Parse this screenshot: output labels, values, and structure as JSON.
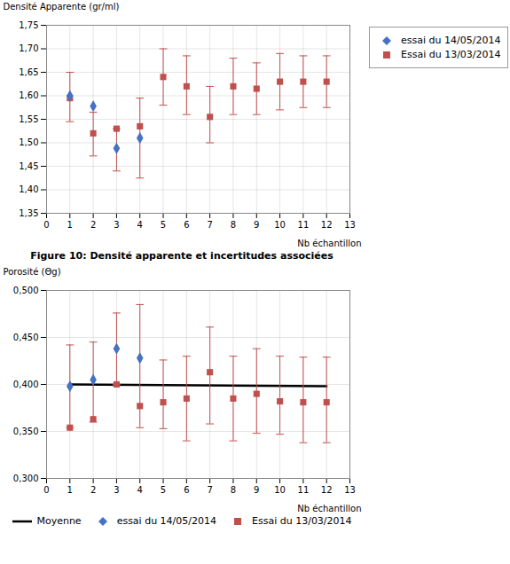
{
  "chart_data": [
    {
      "type": "scatter",
      "xlabel": "Nb échantillon",
      "ylabel": "Densité Apparente (gr/ml)",
      "caption": "Figure 10: Densité apparente et incertitudes associées",
      "xlim": [
        0,
        13
      ],
      "ylim": [
        1.35,
        1.75
      ],
      "xticks": [
        0,
        1,
        2,
        3,
        4,
        5,
        6,
        7,
        8,
        9,
        10,
        11,
        12,
        13
      ],
      "yticks": [
        {
          "value": 1.35,
          "label": "1,35"
        },
        {
          "value": 1.4,
          "label": "1,40"
        },
        {
          "value": 1.45,
          "label": "1,45"
        },
        {
          "value": 1.5,
          "label": "1,50"
        },
        {
          "value": 1.55,
          "label": "1,55"
        },
        {
          "value": 1.6,
          "label": "1,60"
        },
        {
          "value": 1.65,
          "label": "1,65"
        },
        {
          "value": 1.7,
          "label": "1,70"
        },
        {
          "value": 1.75,
          "label": "1,75"
        }
      ],
      "grid": true,
      "legend": "right",
      "series": [
        {
          "name": "essai du 14/05/2014",
          "color": "#4472C4",
          "marker": "diamond",
          "x": [
            1,
            2,
            3,
            4
          ],
          "values": [
            1.6,
            1.578,
            1.488,
            1.51
          ]
        },
        {
          "name": "Essai du 13/03/2014",
          "color": "#C0504D",
          "marker": "square",
          "x": [
            1,
            2,
            3,
            4,
            5,
            6,
            7,
            8,
            9,
            10,
            11,
            12
          ],
          "values": [
            1.595,
            1.52,
            1.53,
            1.535,
            1.64,
            1.62,
            1.555,
            1.62,
            1.615,
            1.63,
            1.63,
            1.63
          ],
          "yerr_lo": [
            0.05,
            0.048,
            0.09,
            0.11,
            0.06,
            0.06,
            0.055,
            0.06,
            0.055,
            0.06,
            0.055,
            0.055
          ],
          "yerr_hi": [
            0.055,
            0.045,
            0.0,
            0.06,
            0.06,
            0.065,
            0.065,
            0.06,
            0.055,
            0.06,
            0.055,
            0.055
          ]
        }
      ]
    },
    {
      "type": "scatter",
      "xlabel": "Nb échantillon",
      "ylabel": "Porosité (Θg)",
      "xlim": [
        0,
        13
      ],
      "ylim": [
        0.3,
        0.5
      ],
      "xticks": [
        0,
        1,
        2,
        3,
        4,
        5,
        6,
        7,
        8,
        9,
        10,
        11,
        12,
        13
      ],
      "yticks": [
        {
          "value": 0.3,
          "label": "0,300"
        },
        {
          "value": 0.35,
          "label": "0,350"
        },
        {
          "value": 0.4,
          "label": "0,400"
        },
        {
          "value": 0.45,
          "label": "0,450"
        },
        {
          "value": 0.5,
          "label": "0,500"
        }
      ],
      "grid": true,
      "legend": "bottom",
      "series": [
        {
          "name": "Moyenne",
          "type": "line",
          "color": "#000000",
          "line_style": "solid",
          "x": [
            1,
            12
          ],
          "values": [
            0.4,
            0.398
          ]
        },
        {
          "name": "essai du 14/05/2014",
          "color": "#4472C4",
          "marker": "diamond",
          "x": [
            1,
            2,
            3,
            4
          ],
          "values": [
            0.398,
            0.405,
            0.438,
            0.428
          ]
        },
        {
          "name": "Essai du 13/03/2014",
          "color": "#C0504D",
          "marker": "square",
          "x": [
            1,
            2,
            3,
            4,
            5,
            6,
            7,
            8,
            9,
            10,
            11,
            12
          ],
          "values": [
            0.354,
            0.363,
            0.4,
            0.377,
            0.381,
            0.385,
            0.413,
            0.385,
            0.39,
            0.382,
            0.381,
            0.381
          ],
          "yerr_lo": [
            0.0,
            0.003,
            0.0,
            0.023,
            0.028,
            0.045,
            0.055,
            0.045,
            0.042,
            0.035,
            0.043,
            0.043
          ],
          "yerr_hi": [
            0.088,
            0.082,
            0.076,
            0.108,
            0.045,
            0.045,
            0.048,
            0.045,
            0.048,
            0.048,
            0.048,
            0.048
          ]
        }
      ]
    }
  ]
}
